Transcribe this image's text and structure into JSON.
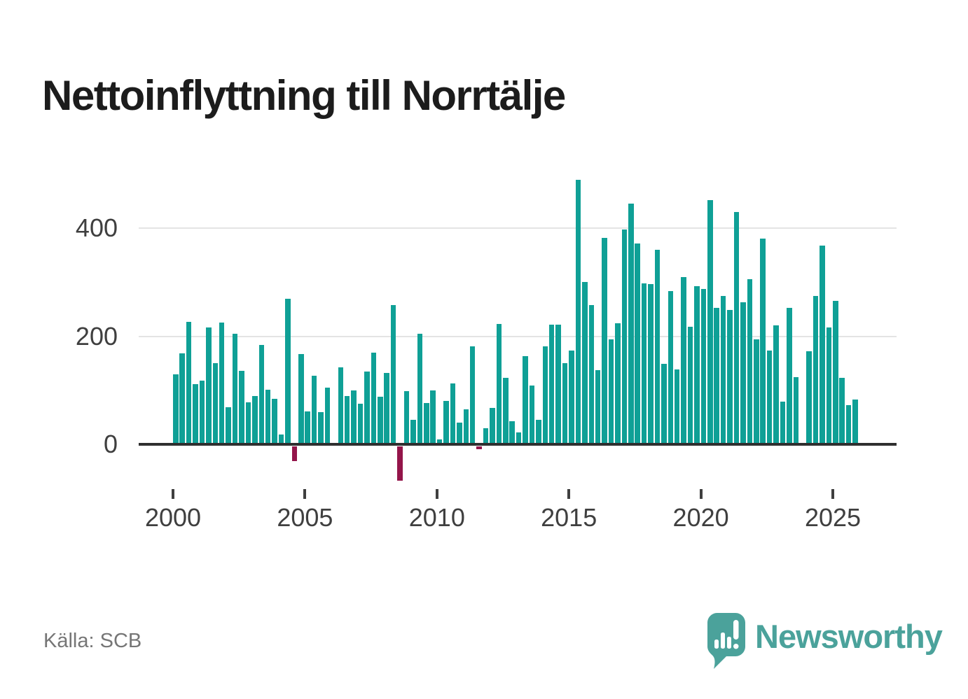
{
  "page": {
    "title": "Nettoinflyttning till Norrtälje",
    "source": "Källa: SCB",
    "brand": "Newsworthy"
  },
  "chart_data": {
    "type": "bar",
    "title": "Nettoinflyttning till Norrtälje",
    "x_unit": "quarter",
    "start": "2000Q1",
    "end": "2025Q4",
    "values": [
      130,
      168,
      227,
      112,
      118,
      216,
      150,
      225,
      69,
      205,
      136,
      78,
      89,
      184,
      101,
      84,
      18,
      269,
      -30,
      167,
      61,
      127,
      60,
      105,
      0,
      142,
      90,
      100,
      75,
      135,
      170,
      88,
      132,
      258,
      -66,
      98,
      45,
      205,
      76,
      100,
      9,
      80,
      113,
      40,
      65,
      181,
      -8,
      30,
      67,
      223,
      123,
      43,
      22,
      163,
      109,
      46,
      181,
      221,
      222,
      150,
      173,
      489,
      300,
      258,
      137,
      382,
      194,
      224,
      398,
      445,
      371,
      298,
      296,
      360,
      149,
      283,
      139,
      309,
      217,
      293,
      288,
      452,
      252,
      275,
      249,
      430,
      263,
      305,
      194,
      380,
      173,
      220,
      79,
      253,
      124,
      0,
      172,
      275,
      368,
      216,
      265,
      123,
      72,
      83
    ],
    "xticks": [
      "2000",
      "2005",
      "2010",
      "2015",
      "2020",
      "2025"
    ],
    "yticks": [
      0,
      200,
      400
    ],
    "ylim": [
      -80,
      510
    ],
    "grid": "horizontal-at-200-and-400",
    "legend": "none",
    "positive_color": "#0FA096",
    "negative_color": "#94154A",
    "source": "Källa: SCB"
  },
  "colors": {
    "bar_positive": "#0FA096",
    "bar_negative": "#94154A",
    "title_text": "#1c1c1c",
    "axis_text": "#3f3f3f",
    "gridline": "#e4e4e4",
    "zero_line": "#2f2f2f",
    "source_text": "#767676",
    "brand_teal": "#4ba29b"
  }
}
